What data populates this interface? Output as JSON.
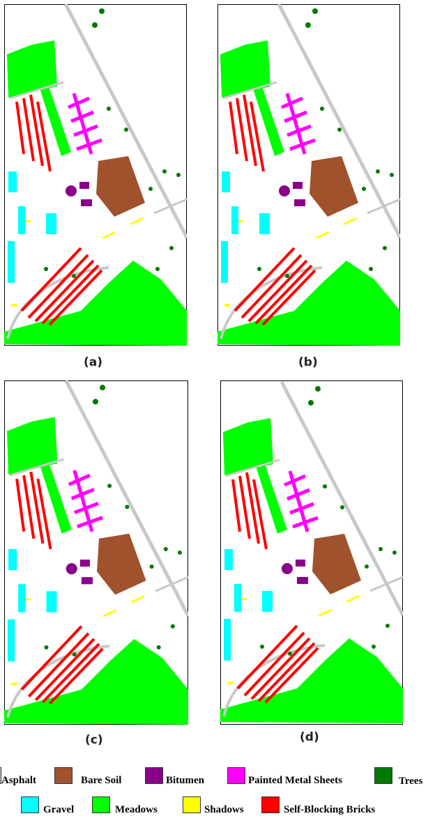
{
  "panels": [
    {
      "label": "(a)"
    },
    {
      "label": "(b)"
    },
    {
      "label": "(c)"
    },
    {
      "label": "(d)"
    }
  ],
  "legend": [
    {
      "label": "Asphalt",
      "color": "#c8c8c8"
    },
    {
      "label": "Bare Soil",
      "color": "#a0522d"
    },
    {
      "label": "Bitumen",
      "color": "#8b008b"
    },
    {
      "label": "Painted Metal Sheets",
      "color": "#ff00ff"
    },
    {
      "label": "Trees",
      "color": "#007a00"
    },
    {
      "label": "Gravel",
      "color": "#00ffff"
    },
    {
      "label": "Meadows",
      "color": "#00ff00"
    },
    {
      "label": "Shadows",
      "color": "#ffff00"
    },
    {
      "label": "Self-Blocking Bricks",
      "color": "#ff0000"
    }
  ]
}
